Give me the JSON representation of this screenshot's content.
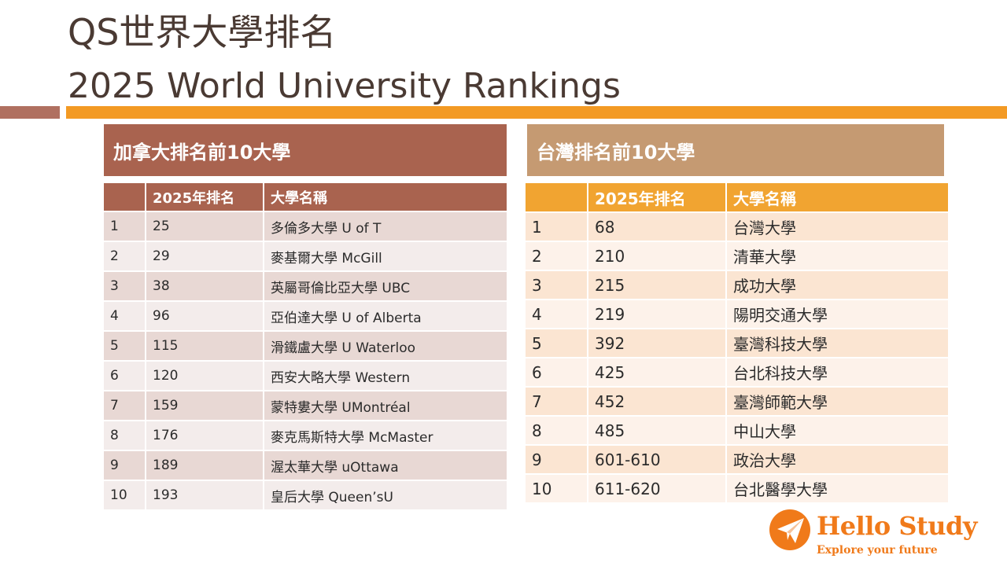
{
  "title_line1": "QS世界大學排名",
  "title_line2": "2025 World University Rankings",
  "canada": {
    "heading": "加拿大排名前10大學",
    "columns": [
      "",
      "2025年排名",
      "大學名稱"
    ],
    "rows": [
      [
        "1",
        "25",
        "多倫多大學 U of T"
      ],
      [
        "2",
        "29",
        "麥基爾大學 McGill"
      ],
      [
        "3",
        "38",
        "英屬哥倫比亞大學 UBC"
      ],
      [
        "4",
        "96",
        "亞伯達大學 U of Alberta"
      ],
      [
        "5",
        "115",
        "滑鐵盧大學 U Waterloo"
      ],
      [
        "6",
        "120",
        "西安大略大學 Western"
      ],
      [
        "7",
        "159",
        "蒙特婁大學 UMontréal"
      ],
      [
        "8",
        "176",
        "麥克馬斯特大學 McMaster"
      ],
      [
        "9",
        "189",
        "渥太華大學 uOttawa"
      ],
      [
        "10",
        "193",
        "皇后大學 Queen’sU"
      ]
    ]
  },
  "taiwan": {
    "heading": "台灣排名前10大學",
    "columns": [
      "",
      "2025年排名",
      "大學名稱"
    ],
    "rows": [
      [
        "1",
        "68",
        "台灣大學"
      ],
      [
        "2",
        "210",
        "清華大學"
      ],
      [
        "3",
        "215",
        "成功大學"
      ],
      [
        "4",
        "219",
        "陽明交通大學"
      ],
      [
        "5",
        "392",
        "臺灣科技大學"
      ],
      [
        "6",
        "425",
        "台北科技大學"
      ],
      [
        "7",
        "452",
        "臺灣師範大學"
      ],
      [
        "8",
        "485",
        "中山大學"
      ],
      [
        "9",
        "601-610",
        "政治大學"
      ],
      [
        "10",
        "611-620",
        "台北醫學大學"
      ]
    ]
  },
  "logo": {
    "name": "Hello Study",
    "tagline": "Explore your future",
    "icon": "paper-plane-icon",
    "color": "#f07a1a"
  },
  "colors": {
    "canada_header": "#a9634f",
    "taiwan_header": "#c59a72",
    "taiwan_table_header": "#f1a431",
    "accent_bar": "#f39a24"
  }
}
